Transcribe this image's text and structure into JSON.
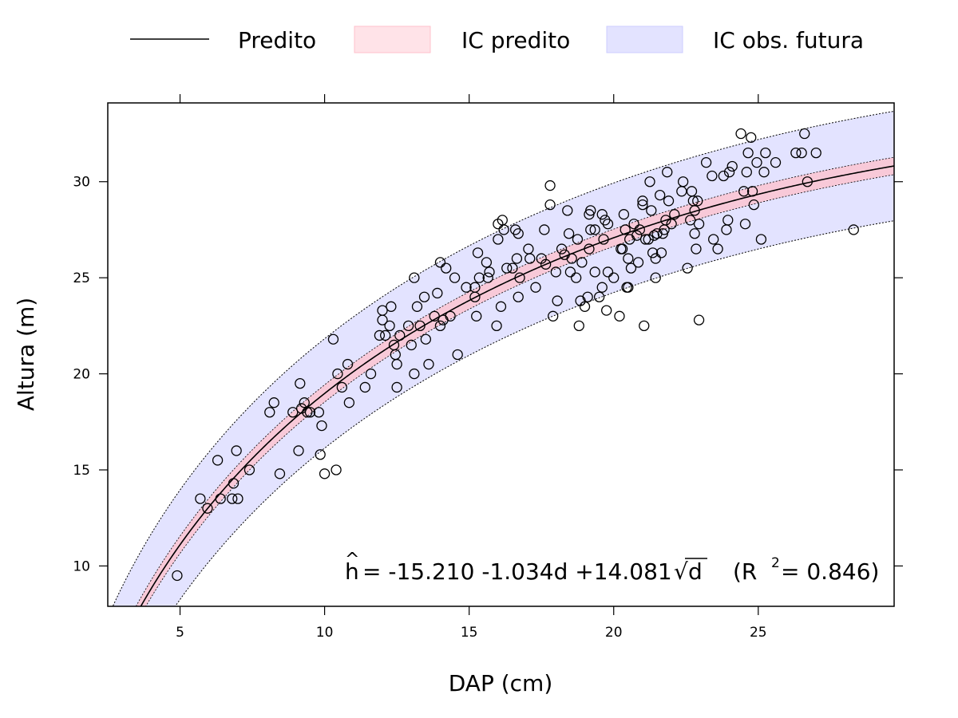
{
  "chart_data": {
    "type": "scatter",
    "title": "",
    "xlabel": "DAP (cm)",
    "ylabel": "Altura (m)",
    "xlim": [
      2.5,
      29.7
    ],
    "ylim": [
      7.9,
      34.1
    ],
    "x_ticks": [
      5,
      10,
      15,
      20,
      25
    ],
    "y_ticks": [
      10,
      15,
      20,
      25,
      30
    ],
    "grid": false,
    "legend": {
      "position": "top",
      "entries": [
        {
          "label": "Predito",
          "kind": "line",
          "color": "#000000"
        },
        {
          "label": "IC predito",
          "kind": "band",
          "color": "#ffc0cb"
        },
        {
          "label": "IC obs. futura",
          "kind": "band",
          "color": "#ccccff"
        }
      ]
    },
    "fit": {
      "model": "h = b0 + b1*d + b2*sqrt(d)",
      "b0": -15.21,
      "b1": -1.034,
      "b2": 14.081,
      "r2": 0.846,
      "conf_band_sd": 0.45,
      "pred_band_sd": 2.85,
      "conf_band_color": "#ffc0cb",
      "pred_band_color": "#ccccff"
    },
    "annotation": {
      "hat": "^",
      "h": "h",
      "body": "= -15.210 -1.034d +14.081",
      "radical": "√",
      "d": "d",
      "r2_open": "(R",
      "r2_exp": "2",
      "r2_close": " = 0.846)"
    },
    "points": [
      [
        4.9,
        9.5
      ],
      [
        5.7,
        13.5
      ],
      [
        5.95,
        13.0
      ],
      [
        6.3,
        15.5
      ],
      [
        6.4,
        13.5
      ],
      [
        6.8,
        13.5
      ],
      [
        6.85,
        14.3
      ],
      [
        6.95,
        16.0
      ],
      [
        7.0,
        13.5
      ],
      [
        7.4,
        15.0
      ],
      [
        8.1,
        18.0
      ],
      [
        8.25,
        18.5
      ],
      [
        8.45,
        14.8
      ],
      [
        8.9,
        18.0
      ],
      [
        9.1,
        16.0
      ],
      [
        9.15,
        19.5
      ],
      [
        9.2,
        18.2
      ],
      [
        9.3,
        18.5
      ],
      [
        9.4,
        18.0
      ],
      [
        9.5,
        18.0
      ],
      [
        9.8,
        18.0
      ],
      [
        9.85,
        15.8
      ],
      [
        9.9,
        17.3
      ],
      [
        10.0,
        14.8
      ],
      [
        10.3,
        21.8
      ],
      [
        10.4,
        15.0
      ],
      [
        10.45,
        20.0
      ],
      [
        10.6,
        19.3
      ],
      [
        10.8,
        20.5
      ],
      [
        10.85,
        18.5
      ],
      [
        11.4,
        19.3
      ],
      [
        11.6,
        20.0
      ],
      [
        11.9,
        22.0
      ],
      [
        12.0,
        23.3
      ],
      [
        12.0,
        22.8
      ],
      [
        12.1,
        22.0
      ],
      [
        12.25,
        22.5
      ],
      [
        12.3,
        23.5
      ],
      [
        12.4,
        21.5
      ],
      [
        12.45,
        21.0
      ],
      [
        12.5,
        20.5
      ],
      [
        12.5,
        19.3
      ],
      [
        12.6,
        22.0
      ],
      [
        12.9,
        22.5
      ],
      [
        13.0,
        21.5
      ],
      [
        13.1,
        20.0
      ],
      [
        13.1,
        25.0
      ],
      [
        13.2,
        23.5
      ],
      [
        13.3,
        22.5
      ],
      [
        13.45,
        24.0
      ],
      [
        13.5,
        21.8
      ],
      [
        13.6,
        20.5
      ],
      [
        13.8,
        23.0
      ],
      [
        13.9,
        24.2
      ],
      [
        14.0,
        25.8
      ],
      [
        14.0,
        22.5
      ],
      [
        14.1,
        22.8
      ],
      [
        14.2,
        25.5
      ],
      [
        14.35,
        23.0
      ],
      [
        14.5,
        25.0
      ],
      [
        14.6,
        21.0
      ],
      [
        14.9,
        24.5
      ],
      [
        15.2,
        24.0
      ],
      [
        15.2,
        24.5
      ],
      [
        15.25,
        23.0
      ],
      [
        15.3,
        26.3
      ],
      [
        15.35,
        25.0
      ],
      [
        15.6,
        25.8
      ],
      [
        15.65,
        25.0
      ],
      [
        15.7,
        25.3
      ],
      [
        15.95,
        22.5
      ],
      [
        16.0,
        27.0
      ],
      [
        16.0,
        27.8
      ],
      [
        16.1,
        23.5
      ],
      [
        16.15,
        28.0
      ],
      [
        16.2,
        27.5
      ],
      [
        16.3,
        25.5
      ],
      [
        16.5,
        25.5
      ],
      [
        16.6,
        27.5
      ],
      [
        16.65,
        26.0
      ],
      [
        16.7,
        27.3
      ],
      [
        16.7,
        24.0
      ],
      [
        16.75,
        25.0
      ],
      [
        17.05,
        26.5
      ],
      [
        17.1,
        26.0
      ],
      [
        17.3,
        24.5
      ],
      [
        17.5,
        26.0
      ],
      [
        17.6,
        27.5
      ],
      [
        17.65,
        25.7
      ],
      [
        17.8,
        28.8
      ],
      [
        17.8,
        29.8
      ],
      [
        17.9,
        23.0
      ],
      [
        18.0,
        25.3
      ],
      [
        18.05,
        23.8
      ],
      [
        18.2,
        26.5
      ],
      [
        18.3,
        26.2
      ],
      [
        18.4,
        28.5
      ],
      [
        18.45,
        27.3
      ],
      [
        18.5,
        25.3
      ],
      [
        18.55,
        26.0
      ],
      [
        18.7,
        25.0
      ],
      [
        18.75,
        27.0
      ],
      [
        18.8,
        22.5
      ],
      [
        18.85,
        23.8
      ],
      [
        18.9,
        25.8
      ],
      [
        19.0,
        23.5
      ],
      [
        19.1,
        24.0
      ],
      [
        19.15,
        26.5
      ],
      [
        19.15,
        28.3
      ],
      [
        19.2,
        28.5
      ],
      [
        19.2,
        27.5
      ],
      [
        19.35,
        27.5
      ],
      [
        19.35,
        25.3
      ],
      [
        19.5,
        24.0
      ],
      [
        19.6,
        28.3
      ],
      [
        19.6,
        24.5
      ],
      [
        19.65,
        27.0
      ],
      [
        19.7,
        28.0
      ],
      [
        19.75,
        23.3
      ],
      [
        19.8,
        27.8
      ],
      [
        19.8,
        25.3
      ],
      [
        20.0,
        25.0
      ],
      [
        20.2,
        23.0
      ],
      [
        20.25,
        26.5
      ],
      [
        20.3,
        26.5
      ],
      [
        20.35,
        28.3
      ],
      [
        20.4,
        27.5
      ],
      [
        20.45,
        24.5
      ],
      [
        20.5,
        24.5
      ],
      [
        20.5,
        26.0
      ],
      [
        20.55,
        27.0
      ],
      [
        20.6,
        25.5
      ],
      [
        20.7,
        27.8
      ],
      [
        20.8,
        27.2
      ],
      [
        20.85,
        25.8
      ],
      [
        20.9,
        27.5
      ],
      [
        21.0,
        29.0
      ],
      [
        21.0,
        28.8
      ],
      [
        21.05,
        22.5
      ],
      [
        21.1,
        27.0
      ],
      [
        21.2,
        27.0
      ],
      [
        21.25,
        30.0
      ],
      [
        21.3,
        28.5
      ],
      [
        21.35,
        26.3
      ],
      [
        21.4,
        27.2
      ],
      [
        21.45,
        25.0
      ],
      [
        21.45,
        26.0
      ],
      [
        21.5,
        27.3
      ],
      [
        21.6,
        29.3
      ],
      [
        21.65,
        26.3
      ],
      [
        21.7,
        27.3
      ],
      [
        21.75,
        27.5
      ],
      [
        21.8,
        28.0
      ],
      [
        21.85,
        30.5
      ],
      [
        21.9,
        29.0
      ],
      [
        22.0,
        27.8
      ],
      [
        22.1,
        28.3
      ],
      [
        22.35,
        29.5
      ],
      [
        22.4,
        30.0
      ],
      [
        22.55,
        25.5
      ],
      [
        22.65,
        28.0
      ],
      [
        22.7,
        29.5
      ],
      [
        22.75,
        29.0
      ],
      [
        22.8,
        28.5
      ],
      [
        22.8,
        27.3
      ],
      [
        22.85,
        26.5
      ],
      [
        22.9,
        29.0
      ],
      [
        22.95,
        27.8
      ],
      [
        22.95,
        22.8
      ],
      [
        23.2,
        31.0
      ],
      [
        23.4,
        30.3
      ],
      [
        23.45,
        27.0
      ],
      [
        23.6,
        26.5
      ],
      [
        23.8,
        30.3
      ],
      [
        23.9,
        27.5
      ],
      [
        23.95,
        28.0
      ],
      [
        24.0,
        30.5
      ],
      [
        24.1,
        30.8
      ],
      [
        24.4,
        32.5
      ],
      [
        24.5,
        29.5
      ],
      [
        24.55,
        27.8
      ],
      [
        24.6,
        30.5
      ],
      [
        24.65,
        31.5
      ],
      [
        24.75,
        32.3
      ],
      [
        24.8,
        29.5
      ],
      [
        24.85,
        28.8
      ],
      [
        24.95,
        31.0
      ],
      [
        25.1,
        27.0
      ],
      [
        25.2,
        30.5
      ],
      [
        25.25,
        31.5
      ],
      [
        25.6,
        31.0
      ],
      [
        26.3,
        31.5
      ],
      [
        26.5,
        31.5
      ],
      [
        26.6,
        32.5
      ],
      [
        26.7,
        30.0
      ],
      [
        27.0,
        31.5
      ],
      [
        28.3,
        27.5
      ]
    ]
  }
}
